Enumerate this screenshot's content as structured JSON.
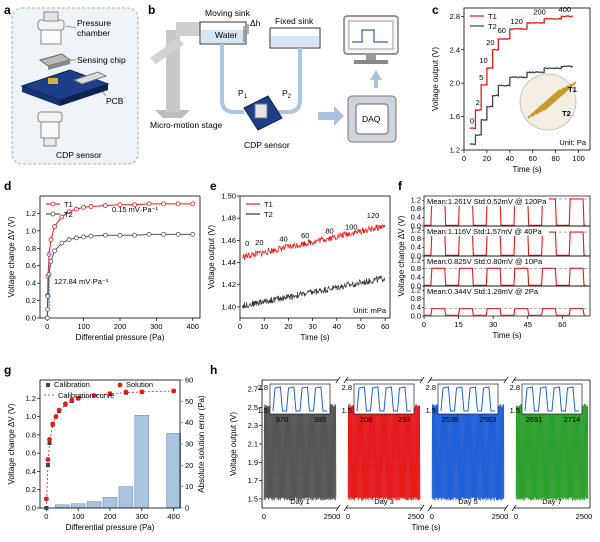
{
  "panel_letters": [
    "a",
    "b",
    "c",
    "d",
    "e",
    "f",
    "g",
    "h"
  ],
  "panel_a": {
    "labels": [
      "Pressure chamber",
      "Sensing chip",
      "PCB",
      "CDP sensor"
    ]
  },
  "panel_b": {
    "labels": [
      "Moving sink",
      "Water",
      "Fixed sink",
      "Micro-motion stage",
      "CDP sensor"
    ],
    "delta_h": "Δh",
    "p1": "P",
    "p1_sub": "1",
    "p2": "P",
    "p2_sub": "2",
    "daq": "DAQ"
  },
  "chart_data": [
    {
      "panel": "c",
      "type": "line",
      "xlabel": "Time (s)",
      "ylabel": "Voltage output (V)",
      "xlim": [
        0,
        110
      ],
      "ylim": [
        1.2,
        2.9
      ],
      "xticks": [
        0,
        20,
        40,
        60,
        80,
        100
      ],
      "yticks": [
        1.2,
        1.6,
        2.0,
        2.4,
        2.8
      ],
      "unit_note": "Unit: Pa",
      "inset_labels": [
        "T1",
        "T2"
      ],
      "series": [
        {
          "name": "T1",
          "color": "#e41a1c",
          "x": [
            5,
            10,
            10,
            15,
            15,
            20,
            20,
            25,
            25,
            30,
            30,
            40,
            40,
            55,
            55,
            70,
            70,
            85,
            85,
            95
          ],
          "y": [
            1.46,
            1.46,
            1.68,
            1.68,
            1.98,
            1.98,
            2.18,
            2.18,
            2.4,
            2.4,
            2.53,
            2.53,
            2.65,
            2.65,
            2.72,
            2.72,
            2.77,
            2.77,
            2.8,
            2.8
          ]
        },
        {
          "name": "T2",
          "color": "#444444",
          "x": [
            5,
            10,
            10,
            15,
            15,
            20,
            20,
            25,
            25,
            30,
            30,
            40,
            40,
            55,
            55,
            70,
            70,
            85,
            85,
            95
          ],
          "y": [
            1.27,
            1.27,
            1.38,
            1.38,
            1.56,
            1.56,
            1.72,
            1.72,
            1.85,
            1.85,
            1.97,
            1.97,
            2.07,
            2.07,
            2.13,
            2.13,
            2.18,
            2.18,
            2.2,
            2.2
          ]
        }
      ],
      "step_labels": [
        {
          "text": "0",
          "x": 7,
          "y": 1.52
        },
        {
          "text": "2",
          "x": 12,
          "y": 1.74
        },
        {
          "text": "5",
          "x": 15,
          "y": 2.04
        },
        {
          "text": "10",
          "x": 17,
          "y": 2.24
        },
        {
          "text": "20",
          "x": 23,
          "y": 2.46
        },
        {
          "text": "60",
          "x": 33,
          "y": 2.6
        },
        {
          "text": "120",
          "x": 46,
          "y": 2.71
        },
        {
          "text": "200",
          "x": 66,
          "y": 2.82
        },
        {
          "text": "400",
          "x": 88,
          "y": 2.85
        }
      ]
    },
    {
      "panel": "d",
      "type": "line",
      "xlabel": "Differential pressure (Pa)",
      "ylabel": "Voltage change ΔV (V)",
      "xlim": [
        -20,
        420
      ],
      "ylim": [
        0,
        1.4
      ],
      "xticks": [
        0,
        100,
        200,
        300,
        400
      ],
      "yticks": [
        0,
        0.2,
        0.4,
        0.6,
        0.8,
        1.0,
        1.2
      ],
      "annotations": [
        "0.15 mV·Pa⁻¹",
        "127.84 mV·Pa⁻¹"
      ],
      "series": [
        {
          "name": "T1",
          "color": "#e41a1c",
          "x": [
            0,
            1,
            2,
            5,
            10,
            20,
            40,
            60,
            80,
            100,
            120,
            160,
            200,
            240,
            280,
            320,
            360,
            400
          ],
          "y": [
            0,
            0.26,
            0.48,
            0.73,
            0.9,
            1.05,
            1.16,
            1.22,
            1.25,
            1.27,
            1.28,
            1.29,
            1.3,
            1.3,
            1.31,
            1.31,
            1.31,
            1.31
          ]
        },
        {
          "name": "T2",
          "color": "#555555",
          "x": [
            0,
            1,
            2,
            5,
            10,
            20,
            40,
            60,
            80,
            100,
            120,
            160,
            200,
            240,
            280,
            320,
            360,
            400
          ],
          "y": [
            0,
            0.1,
            0.25,
            0.5,
            0.65,
            0.77,
            0.86,
            0.9,
            0.92,
            0.93,
            0.94,
            0.95,
            0.95,
            0.95,
            0.96,
            0.96,
            0.96,
            0.96
          ]
        }
      ]
    },
    {
      "panel": "e",
      "type": "line",
      "xlabel": "Time (s)",
      "ylabel": "Voltage output (V)",
      "xlim": [
        0,
        62
      ],
      "ylim": [
        1.39,
        1.5
      ],
      "xticks": [
        0,
        10,
        20,
        30,
        40,
        50,
        60
      ],
      "yticks": [
        1.4,
        1.42,
        1.44,
        1.46,
        1.48,
        1.5
      ],
      "unit_note": "Unit: mPa",
      "series": [
        {
          "name": "T1",
          "color": "#e41a1c",
          "x": [
            1,
            60
          ],
          "y": [
            1.445,
            1.473
          ]
        },
        {
          "name": "T2",
          "color": "#333333",
          "x": [
            1,
            60
          ],
          "y": [
            1.401,
            1.426
          ]
        }
      ],
      "step_labels": [
        {
          "text": "0",
          "x": 3,
          "y": 1.455
        },
        {
          "text": "20",
          "x": 8,
          "y": 1.456
        },
        {
          "text": "40",
          "x": 18,
          "y": 1.459
        },
        {
          "text": "60",
          "x": 27,
          "y": 1.462
        },
        {
          "text": "80",
          "x": 37,
          "y": 1.466
        },
        {
          "text": "100",
          "x": 46,
          "y": 1.47
        },
        {
          "text": "120",
          "x": 55,
          "y": 1.48
        }
      ]
    },
    {
      "panel": "f",
      "type": "line",
      "xlabel": "Time (s)",
      "ylabel": "Voltage change ΔV (V)",
      "xlim": [
        0,
        72
      ],
      "xticks": [
        0,
        15,
        30,
        45,
        60
      ],
      "ylim_each": [
        0,
        1.4
      ],
      "yticks_each": [
        0,
        0.4,
        0.8,
        1.2
      ],
      "rows": [
        {
          "label": "Mean:1.261V  Std:0.52mV  @ 120Pa",
          "level": 1.261
        },
        {
          "label": "Mean:1.116V  Std:1.57mV  @ 40Pa",
          "level": 1.116
        },
        {
          "label": "Mean:0.825V  Std:0.80mV  @ 10Pa",
          "level": 0.825
        },
        {
          "label": "Mean:0.344V  Std:1.29mV  @ 2Pa",
          "level": 0.344
        }
      ]
    },
    {
      "panel": "g",
      "type": "bar",
      "xlabel": "Differential pressure (Pa)",
      "ylabel": "Voltage change ΔV (V)",
      "ylabel_right": "Absolute solution error (Pa)",
      "xlim": [
        -20,
        420
      ],
      "ylim": [
        0,
        1.4
      ],
      "ylim_right": [
        0,
        60
      ],
      "xticks": [
        0,
        100,
        200,
        300,
        400
      ],
      "yticks": [
        0,
        0.2,
        0.4,
        0.6,
        0.8,
        1.0,
        1.2
      ],
      "yticks_right": [
        0,
        10,
        20,
        30,
        40,
        50,
        60
      ],
      "legend": [
        "Calibration",
        "Solution",
        "Calibration curve"
      ],
      "calibration": {
        "x": [
          0,
          5,
          10,
          20,
          30,
          40,
          60,
          80,
          100,
          150,
          200,
          250,
          300,
          400
        ],
        "y": [
          0,
          0.47,
          0.71,
          0.91,
          1.0,
          1.06,
          1.13,
          1.17,
          1.2,
          1.23,
          1.25,
          1.26,
          1.27,
          1.28
        ]
      },
      "solution": {
        "x": [
          0,
          5,
          10,
          20,
          30,
          40,
          60,
          80,
          100,
          150,
          200,
          250,
          300,
          400
        ],
        "y": [
          0.1,
          0.53,
          0.75,
          0.92,
          1.0,
          1.07,
          1.14,
          1.18,
          1.2,
          1.23,
          1.25,
          1.27,
          1.27,
          1.28
        ]
      },
      "error_bars": {
        "x": [
          50,
          100,
          150,
          200,
          250,
          300,
          400
        ],
        "values": [
          1.5,
          2,
          3,
          5,
          10,
          43.5,
          35
        ]
      }
    },
    {
      "panel": "h",
      "type": "line",
      "xlabel": "Time (s)",
      "ylabel": "Voltage output (V)",
      "ylim": [
        1.4,
        2.8
      ],
      "yticks": [
        1.5,
        1.7,
        1.9,
        2.1,
        2.3,
        2.5,
        2.7
      ],
      "xticks": [
        0,
        2500
      ],
      "segments": [
        {
          "day": "Day 1",
          "color": "#555555",
          "inset_ticks": [
            "370",
            "395"
          ]
        },
        {
          "day": "Day 3",
          "color": "#e41a1c",
          "inset_ticks": [
            "208",
            "233"
          ]
        },
        {
          "day": "Day 5",
          "color": "#1f5fd6",
          "inset_ticks": [
            "2538",
            "2563"
          ]
        },
        {
          "day": "Day 7",
          "color": "#2ca02c",
          "inset_ticks": [
            "2691",
            "2714"
          ]
        }
      ],
      "inset_yticks": [
        "2.8",
        "1.5"
      ]
    }
  ]
}
